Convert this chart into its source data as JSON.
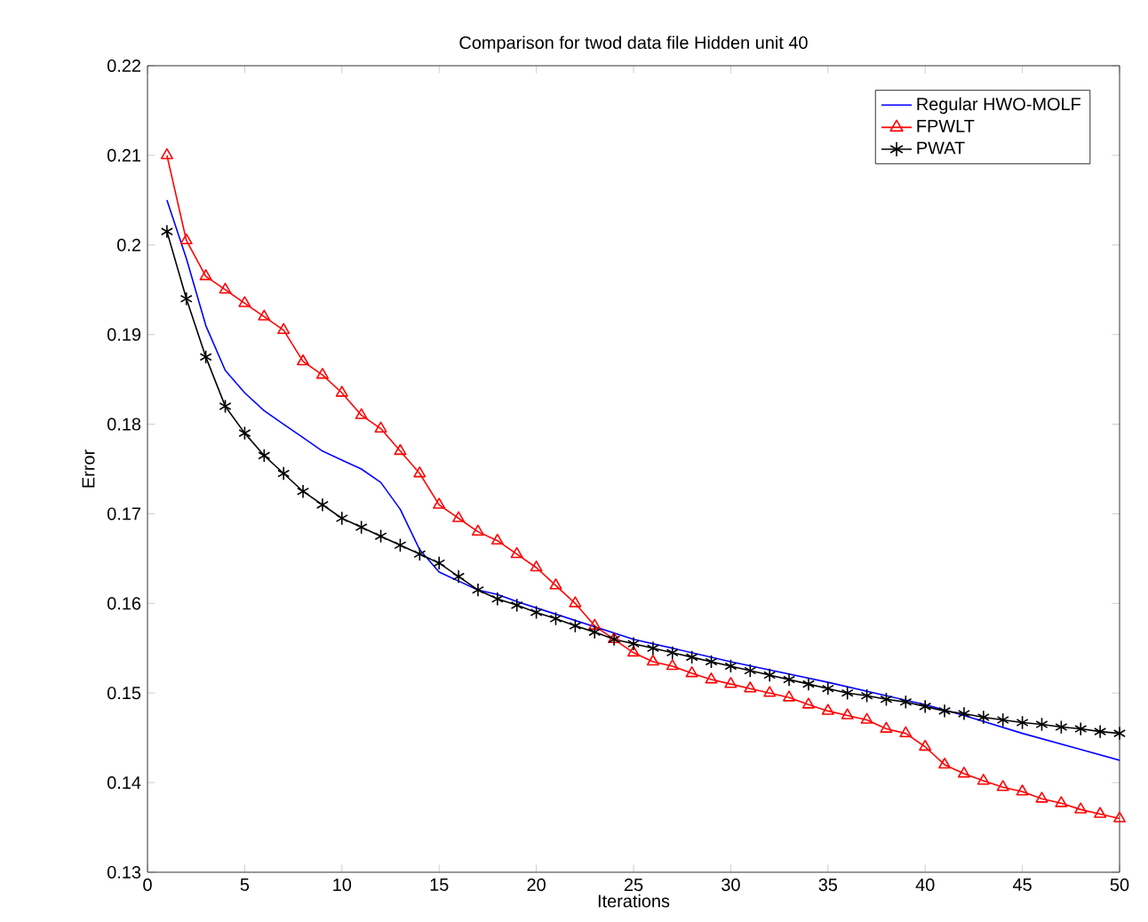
{
  "chart_data": {
    "type": "line",
    "title": "Comparison for twod data file Hidden unit 40",
    "xlabel": "Iterations",
    "ylabel": "Error",
    "xlim": [
      0,
      50
    ],
    "ylim": [
      0.13,
      0.22
    ],
    "xticks": [
      0,
      5,
      10,
      15,
      20,
      25,
      30,
      35,
      40,
      45,
      50
    ],
    "yticks": [
      0.13,
      0.14,
      0.15,
      0.16,
      0.17,
      0.18,
      0.19,
      0.2,
      0.21,
      0.22
    ],
    "grid": false,
    "legend": "top right",
    "series": [
      {
        "name": "Regular HWO-MOLF",
        "color": "#0000ff",
        "marker": "none",
        "line_style": "solid",
        "x": [
          1,
          2,
          3,
          4,
          5,
          6,
          7,
          8,
          9,
          10,
          11,
          12,
          13,
          14,
          15,
          16,
          17,
          18,
          19,
          20,
          25,
          30,
          35,
          38,
          40,
          42,
          45,
          48,
          50
        ],
        "values": [
          0.205,
          0.1985,
          0.191,
          0.186,
          0.1835,
          0.1815,
          0.18,
          0.1785,
          0.177,
          0.176,
          0.175,
          0.1735,
          0.1705,
          0.166,
          0.1635,
          0.1625,
          0.1615,
          0.161,
          0.1602,
          0.1595,
          0.156,
          0.1535,
          0.1512,
          0.1497,
          0.1487,
          0.1475,
          0.1455,
          0.1437,
          0.1425
        ]
      },
      {
        "name": "FPWLT",
        "color": "#ff0000",
        "marker": "triangle",
        "line_style": "solid",
        "x": [
          1,
          2,
          3,
          4,
          5,
          6,
          7,
          8,
          9,
          10,
          11,
          12,
          13,
          14,
          15,
          16,
          17,
          18,
          19,
          20,
          21,
          22,
          23,
          24,
          25,
          26,
          27,
          28,
          29,
          30,
          31,
          32,
          33,
          34,
          35,
          36,
          37,
          38,
          39,
          40,
          41,
          42,
          43,
          44,
          45,
          46,
          47,
          48,
          49,
          50
        ],
        "values": [
          0.21,
          0.2005,
          0.1965,
          0.195,
          0.1935,
          0.192,
          0.1905,
          0.187,
          0.1855,
          0.1835,
          0.181,
          0.1795,
          0.177,
          0.1745,
          0.171,
          0.1695,
          0.168,
          0.167,
          0.1655,
          0.164,
          0.162,
          0.16,
          0.1575,
          0.156,
          0.1545,
          0.1535,
          0.153,
          0.1522,
          0.1515,
          0.151,
          0.1505,
          0.15,
          0.1495,
          0.1487,
          0.148,
          0.1475,
          0.147,
          0.146,
          0.1455,
          0.144,
          0.142,
          0.141,
          0.1402,
          0.1395,
          0.139,
          0.1382,
          0.1377,
          0.137,
          0.1365,
          0.136
        ]
      },
      {
        "name": "PWAT",
        "color": "#000000",
        "marker": "cross",
        "line_style": "solid",
        "x": [
          1,
          2,
          3,
          4,
          5,
          6,
          7,
          8,
          9,
          10,
          11,
          12,
          13,
          14,
          15,
          16,
          17,
          18,
          19,
          20,
          21,
          22,
          23,
          24,
          25,
          26,
          27,
          28,
          29,
          30,
          31,
          32,
          33,
          34,
          35,
          36,
          37,
          38,
          39,
          40,
          41,
          42,
          43,
          44,
          45,
          46,
          47,
          48,
          49,
          50
        ],
        "values": [
          0.2015,
          0.194,
          0.1875,
          0.182,
          0.179,
          0.1765,
          0.1745,
          0.1725,
          0.171,
          0.1695,
          0.1685,
          0.1675,
          0.1665,
          0.1655,
          0.1645,
          0.163,
          0.1615,
          0.1605,
          0.1598,
          0.159,
          0.1583,
          0.1575,
          0.1568,
          0.156,
          0.1555,
          0.155,
          0.1545,
          0.154,
          0.1535,
          0.153,
          0.1525,
          0.152,
          0.1515,
          0.151,
          0.1505,
          0.15,
          0.1497,
          0.1493,
          0.149,
          0.1485,
          0.148,
          0.1477,
          0.1473,
          0.147,
          0.1467,
          0.1465,
          0.1462,
          0.146,
          0.1457,
          0.1455
        ]
      }
    ]
  }
}
